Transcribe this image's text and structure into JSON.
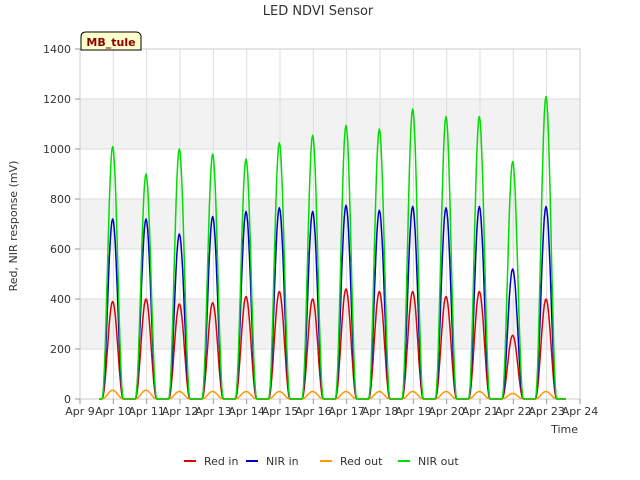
{
  "chart_data": {
    "type": "line",
    "title": "LED NDVI Sensor",
    "xlabel": "Time",
    "ylabel": "Red, NIR response (mV)",
    "ylim": [
      0,
      1400
    ],
    "yticks": [
      0,
      200,
      400,
      600,
      800,
      1000,
      1200,
      1400
    ],
    "xlim": [
      "Apr 9",
      "Apr 24"
    ],
    "x_tick_labels": [
      "Apr 9",
      "Apr 10",
      "Apr 11",
      "Apr 12",
      "Apr 13",
      "Apr 14",
      "Apr 15",
      "Apr 16",
      "Apr 17",
      "Apr 18",
      "Apr 19",
      "Apr 20",
      "Apr 21",
      "Apr 22",
      "Apr 23",
      "Apr 24"
    ],
    "grid": true,
    "legend_position": "bottom",
    "annotation": "MB_tule",
    "days": [
      "Apr 10",
      "Apr 11",
      "Apr 12",
      "Apr 13",
      "Apr 14",
      "Apr 15",
      "Apr 16",
      "Apr 17",
      "Apr 18",
      "Apr 19",
      "Apr 20",
      "Apr 21",
      "Apr 22",
      "Apr 23"
    ],
    "series": [
      {
        "name": "Red in",
        "color": "#dd0000",
        "daily_peak": [
          390,
          400,
          380,
          385,
          410,
          430,
          400,
          440,
          430,
          430,
          410,
          430,
          255,
          400
        ]
      },
      {
        "name": "NIR in",
        "color": "#0000cc",
        "daily_peak": [
          720,
          720,
          660,
          730,
          750,
          765,
          750,
          775,
          755,
          770,
          765,
          770,
          520,
          770
        ]
      },
      {
        "name": "Red out",
        "color": "#ff9900",
        "daily_peak": [
          35,
          35,
          30,
          30,
          30,
          30,
          30,
          30,
          30,
          30,
          30,
          30,
          22,
          30
        ]
      },
      {
        "name": "NIR out",
        "color": "#00dd00",
        "daily_peak": [
          1010,
          900,
          1000,
          980,
          960,
          1025,
          1055,
          1095,
          1080,
          1160,
          1130,
          1130,
          950,
          1210
        ]
      }
    ]
  }
}
